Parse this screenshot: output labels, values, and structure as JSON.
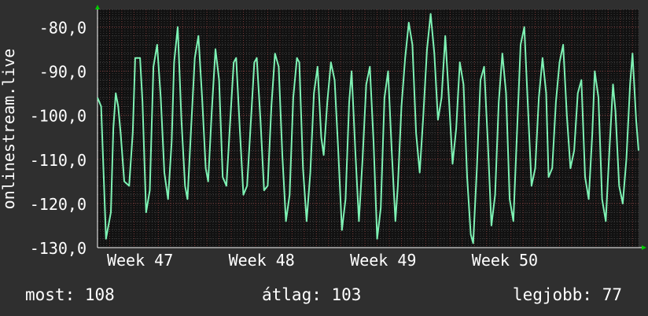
{
  "chart_data": {
    "type": "line",
    "ylabel": "onlinestream.live",
    "ylim": [
      -130,
      -76
    ],
    "y_ticks": [
      -80,
      -90,
      -100,
      -110,
      -120,
      -130
    ],
    "y_tick_labels": [
      "-80,0",
      "-90,0",
      "-100,0",
      "-110,0",
      "-120,0",
      "-130,0"
    ],
    "x_range": [
      0,
      44.5
    ],
    "x_ticks": [
      {
        "label": "Week 47",
        "day": 3.5
      },
      {
        "label": "Week 48",
        "day": 13.5
      },
      {
        "label": "Week 49",
        "day": 23.5
      },
      {
        "label": "Week 50",
        "day": 33.5
      }
    ],
    "grid": true,
    "colors": {
      "background": "#2f2f2f",
      "plot_area": "#111111",
      "line": "#7ef2b4",
      "grid_minor": "#3e3e3e",
      "grid_major": "#7a3a3a",
      "arrow": "#00cc00"
    },
    "series": [
      {
        "values": [
          [
            0.0,
            -96
          ],
          [
            0.3,
            -98
          ],
          [
            0.7,
            -128
          ],
          [
            1.1,
            -122
          ],
          [
            1.3,
            -103
          ],
          [
            1.5,
            -95
          ],
          [
            1.7,
            -98
          ],
          [
            1.9,
            -104
          ],
          [
            2.2,
            -115
          ],
          [
            2.6,
            -116
          ],
          [
            2.9,
            -104
          ],
          [
            3.1,
            -87
          ],
          [
            3.5,
            -87
          ],
          [
            3.7,
            -97
          ],
          [
            4.0,
            -122
          ],
          [
            4.3,
            -117
          ],
          [
            4.6,
            -89
          ],
          [
            4.9,
            -84
          ],
          [
            5.2,
            -96
          ],
          [
            5.5,
            -113
          ],
          [
            5.8,
            -119
          ],
          [
            6.1,
            -106
          ],
          [
            6.3,
            -88
          ],
          [
            6.6,
            -80
          ],
          [
            6.9,
            -101
          ],
          [
            7.2,
            -116
          ],
          [
            7.4,
            -119
          ],
          [
            7.7,
            -103
          ],
          [
            8.0,
            -87
          ],
          [
            8.3,
            -82
          ],
          [
            8.6,
            -96
          ],
          [
            8.9,
            -112
          ],
          [
            9.1,
            -115
          ],
          [
            9.4,
            -99
          ],
          [
            9.7,
            -85
          ],
          [
            10.0,
            -92
          ],
          [
            10.3,
            -114
          ],
          [
            10.6,
            -116
          ],
          [
            10.9,
            -102
          ],
          [
            11.2,
            -88
          ],
          [
            11.4,
            -87
          ],
          [
            11.7,
            -103
          ],
          [
            12.0,
            -118
          ],
          [
            12.3,
            -116
          ],
          [
            12.6,
            -102
          ],
          [
            12.9,
            -88
          ],
          [
            13.1,
            -87
          ],
          [
            13.4,
            -101
          ],
          [
            13.7,
            -117
          ],
          [
            14.0,
            -116
          ],
          [
            14.3,
            -98
          ],
          [
            14.6,
            -86
          ],
          [
            14.9,
            -89
          ],
          [
            15.2,
            -109
          ],
          [
            15.5,
            -124
          ],
          [
            15.8,
            -118
          ],
          [
            16.1,
            -96
          ],
          [
            16.4,
            -87
          ],
          [
            16.6,
            -88
          ],
          [
            16.9,
            -112
          ],
          [
            17.2,
            -124
          ],
          [
            17.5,
            -113
          ],
          [
            17.8,
            -95
          ],
          [
            18.1,
            -89
          ],
          [
            18.4,
            -105
          ],
          [
            18.6,
            -109
          ],
          [
            18.9,
            -97
          ],
          [
            19.2,
            -88
          ],
          [
            19.5,
            -92
          ],
          [
            19.8,
            -108
          ],
          [
            20.1,
            -126
          ],
          [
            20.4,
            -119
          ],
          [
            20.7,
            -97
          ],
          [
            20.9,
            -90
          ],
          [
            21.2,
            -108
          ],
          [
            21.5,
            -124
          ],
          [
            21.8,
            -110
          ],
          [
            22.1,
            -93
          ],
          [
            22.4,
            -89
          ],
          [
            22.7,
            -106
          ],
          [
            23.0,
            -128
          ],
          [
            23.3,
            -121
          ],
          [
            23.6,
            -96
          ],
          [
            23.9,
            -90
          ],
          [
            24.2,
            -108
          ],
          [
            24.5,
            -124
          ],
          [
            24.7,
            -116
          ],
          [
            25.0,
            -98
          ],
          [
            25.3,
            -87
          ],
          [
            25.6,
            -79
          ],
          [
            25.9,
            -84
          ],
          [
            26.2,
            -104
          ],
          [
            26.5,
            -113
          ],
          [
            26.8,
            -100
          ],
          [
            27.1,
            -85
          ],
          [
            27.4,
            -77
          ],
          [
            27.7,
            -86
          ],
          [
            28.0,
            -101
          ],
          [
            28.3,
            -96
          ],
          [
            28.6,
            -82
          ],
          [
            28.9,
            -96
          ],
          [
            29.2,
            -111
          ],
          [
            29.5,
            -103
          ],
          [
            29.8,
            -88
          ],
          [
            30.1,
            -93
          ],
          [
            30.4,
            -114
          ],
          [
            30.7,
            -127
          ],
          [
            30.9,
            -129
          ],
          [
            31.2,
            -112
          ],
          [
            31.5,
            -92
          ],
          [
            31.8,
            -89
          ],
          [
            32.1,
            -106
          ],
          [
            32.4,
            -125
          ],
          [
            32.7,
            -118
          ],
          [
            33.0,
            -97
          ],
          [
            33.3,
            -86
          ],
          [
            33.6,
            -95
          ],
          [
            33.9,
            -119
          ],
          [
            34.2,
            -124
          ],
          [
            34.5,
            -104
          ],
          [
            34.8,
            -84
          ],
          [
            35.1,
            -80
          ],
          [
            35.4,
            -98
          ],
          [
            35.7,
            -116
          ],
          [
            36.0,
            -112
          ],
          [
            36.3,
            -96
          ],
          [
            36.6,
            -87
          ],
          [
            36.9,
            -95
          ],
          [
            37.1,
            -114
          ],
          [
            37.4,
            -112
          ],
          [
            37.7,
            -97
          ],
          [
            38.0,
            -88
          ],
          [
            38.3,
            -84
          ],
          [
            38.6,
            -100
          ],
          [
            38.9,
            -112
          ],
          [
            39.2,
            -108
          ],
          [
            39.5,
            -95
          ],
          [
            39.8,
            -92
          ],
          [
            40.1,
            -114
          ],
          [
            40.4,
            -119
          ],
          [
            40.7,
            -104
          ],
          [
            40.9,
            -90
          ],
          [
            41.2,
            -96
          ],
          [
            41.5,
            -119
          ],
          [
            41.8,
            -124
          ],
          [
            42.1,
            -108
          ],
          [
            42.4,
            -93
          ],
          [
            42.6,
            -99
          ],
          [
            42.9,
            -116
          ],
          [
            43.2,
            -120
          ],
          [
            43.5,
            -110
          ],
          [
            43.8,
            -93
          ],
          [
            44.0,
            -86
          ],
          [
            44.3,
            -101
          ],
          [
            44.5,
            -108
          ]
        ]
      }
    ]
  },
  "footer": {
    "most": "most: 108",
    "avg": "átlag: 103",
    "best": "legjobb: 77"
  }
}
